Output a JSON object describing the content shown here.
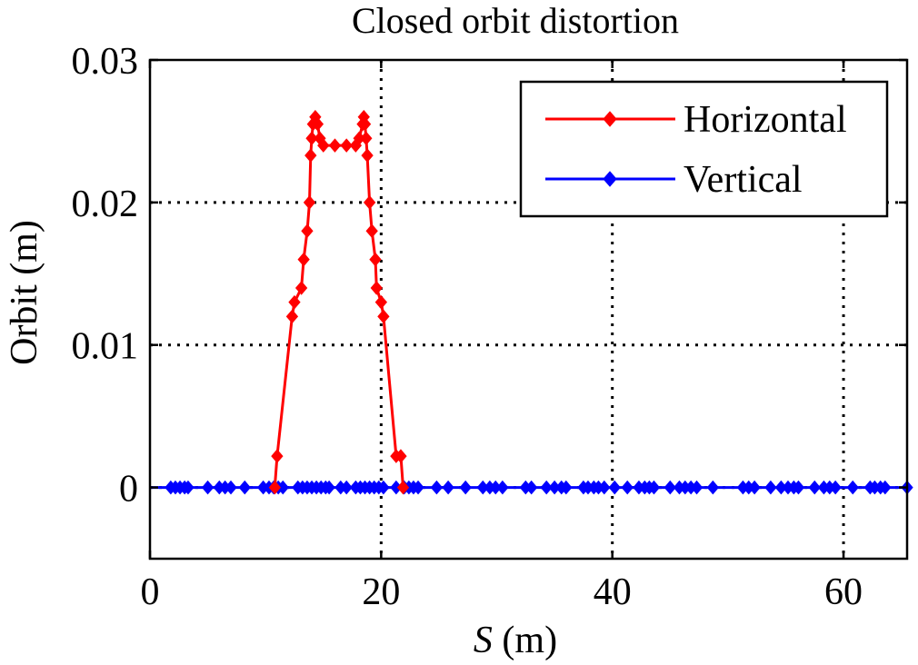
{
  "chart_data": {
    "type": "line",
    "title": "Closed orbit distortion",
    "xlabel_var": "S",
    "xlabel_unit": " (m)",
    "ylabel": "Orbit (m)",
    "xlim": [
      0,
      65.5
    ],
    "ylim": [
      -0.005,
      0.03
    ],
    "xticks": [
      0,
      20,
      40,
      60
    ],
    "xtick_labels": [
      "0",
      "20",
      "40",
      "60"
    ],
    "yticks": [
      0,
      0.01,
      0.02,
      0.03
    ],
    "ytick_labels": [
      "0",
      "0.01",
      "0.02",
      "0.03"
    ],
    "grid": true,
    "legend_position": "top-right",
    "series": [
      {
        "name": "Horizontal",
        "color": "#ff0000",
        "marker": "diamond",
        "x": [
          10.8,
          11.0,
          12.3,
          12.5,
          13.1,
          13.3,
          13.6,
          13.8,
          13.9,
          14.0,
          14.1,
          14.3,
          14.5,
          14.7,
          15.0,
          16.0,
          17.0,
          17.8,
          18.1,
          18.4,
          18.5,
          18.6,
          18.7,
          18.8,
          19.0,
          19.2,
          19.5,
          19.6,
          20.0,
          20.2,
          21.3,
          21.7,
          21.9
        ],
        "y": [
          0.0,
          0.0022,
          0.012,
          0.013,
          0.014,
          0.016,
          0.018,
          0.02,
          0.0233,
          0.0245,
          0.0255,
          0.026,
          0.0255,
          0.0245,
          0.024,
          0.024,
          0.024,
          0.024,
          0.0245,
          0.0255,
          0.026,
          0.0255,
          0.0245,
          0.0233,
          0.02,
          0.018,
          0.016,
          0.014,
          0.013,
          0.012,
          0.0022,
          0.0022,
          0.0
        ]
      },
      {
        "name": "Vertical",
        "color": "#0000ff",
        "marker": "diamond",
        "x": [
          1.8,
          2.2,
          2.6,
          3.0,
          3.3,
          5.0,
          6.0,
          6.5,
          7.0,
          8.2,
          9.8,
          10.3,
          10.7,
          11.1,
          11.5,
          12.8,
          13.2,
          13.6,
          14.0,
          14.4,
          14.8,
          15.2,
          15.5,
          16.5,
          17.0,
          17.8,
          18.2,
          18.6,
          19.0,
          19.4,
          19.8,
          20.2,
          21.3,
          22.0,
          22.4,
          22.8,
          23.2,
          24.8,
          25.8,
          27.3,
          28.8,
          29.4,
          29.9,
          30.5,
          32.5,
          33.0,
          34.3,
          35.0,
          35.6,
          36.0,
          37.5,
          37.9,
          38.4,
          38.8,
          39.3,
          40.2,
          41.3,
          42.3,
          42.8,
          43.2,
          43.6,
          45.0,
          45.8,
          46.3,
          46.8,
          47.3,
          48.7,
          51.3,
          51.8,
          52.3,
          53.7,
          54.6,
          55.2,
          55.7,
          56.1,
          57.5,
          58.3,
          58.8,
          59.3,
          60.8,
          62.3,
          62.7,
          63.2,
          63.6,
          65.5
        ],
        "y": [
          0,
          0,
          0,
          0,
          0,
          0,
          0,
          0,
          0,
          0,
          0,
          0,
          0,
          0,
          0,
          0,
          0,
          0,
          0,
          0,
          0,
          0,
          0,
          0,
          0,
          0,
          0,
          0,
          0,
          0,
          0,
          0,
          0,
          0,
          0,
          0,
          0,
          0,
          0,
          0,
          0,
          0,
          0,
          0,
          0,
          0,
          0,
          0,
          0,
          0,
          0,
          0,
          0,
          0,
          0,
          0,
          0,
          0,
          0,
          0,
          0,
          0,
          0,
          0,
          0,
          0,
          0,
          0,
          0,
          0,
          0,
          0,
          0,
          0,
          0,
          0,
          0,
          0,
          0,
          0,
          0,
          0,
          0,
          0,
          0
        ]
      }
    ]
  }
}
